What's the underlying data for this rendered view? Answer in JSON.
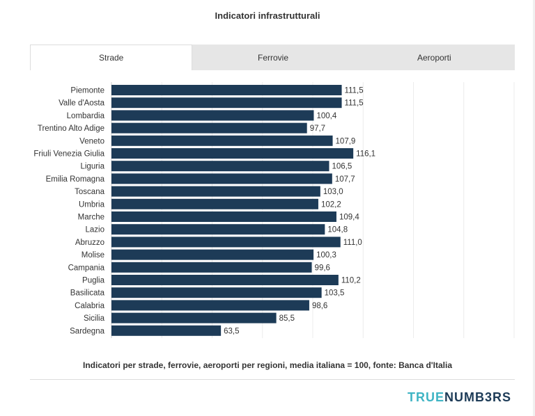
{
  "page": {
    "title": "Indicatori infrastrutturali",
    "caption": "Indicatori per strade, ferrovie, aeroporti per regioni, media italiana = 100, fonte: Banca d'Italia"
  },
  "tabs": [
    {
      "label": "Strade",
      "active": true
    },
    {
      "label": "Ferrovie",
      "active": false
    },
    {
      "label": "Aeroporti",
      "active": false
    }
  ],
  "brand": {
    "part1": "TRUE",
    "part2": "NUMB3RS"
  },
  "colors": {
    "bar": "#1d3b57",
    "brand_accent": "#3fb4c4",
    "brand_dark": "#1d3b57"
  },
  "chart_data": {
    "type": "bar",
    "orientation": "horizontal",
    "categories": [
      "Piemonte",
      "Valle d'Aosta",
      "Lombardia",
      "Trentino Alto Adige",
      "Veneto",
      "Friuli Venezia Giulia",
      "Liguria",
      "Emilia Romagna",
      "Toscana",
      "Umbria",
      "Marche",
      "Lazio",
      "Abruzzo",
      "Molise",
      "Campania",
      "Puglia",
      "Basilicata",
      "Calabria",
      "Sicilia",
      "Sardegna"
    ],
    "values": [
      111.5,
      111.5,
      100.4,
      97.7,
      107.9,
      116.1,
      106.5,
      107.7,
      103.0,
      102.2,
      109.4,
      104.8,
      111.0,
      100.3,
      99.6,
      110.2,
      103.5,
      98.6,
      85.5,
      63.5
    ],
    "value_labels": [
      "111,5",
      "111,5",
      "100,4",
      "97,7",
      "107,9",
      "116,1",
      "106,5",
      "107,7",
      "103,0",
      "102,2",
      "109,4",
      "104,8",
      "111,0",
      "100,3",
      "99,6",
      "110,2",
      "103,5",
      "98,6",
      "85,5",
      "63,5"
    ],
    "xlim": [
      20,
      180
    ],
    "grid": true
  }
}
